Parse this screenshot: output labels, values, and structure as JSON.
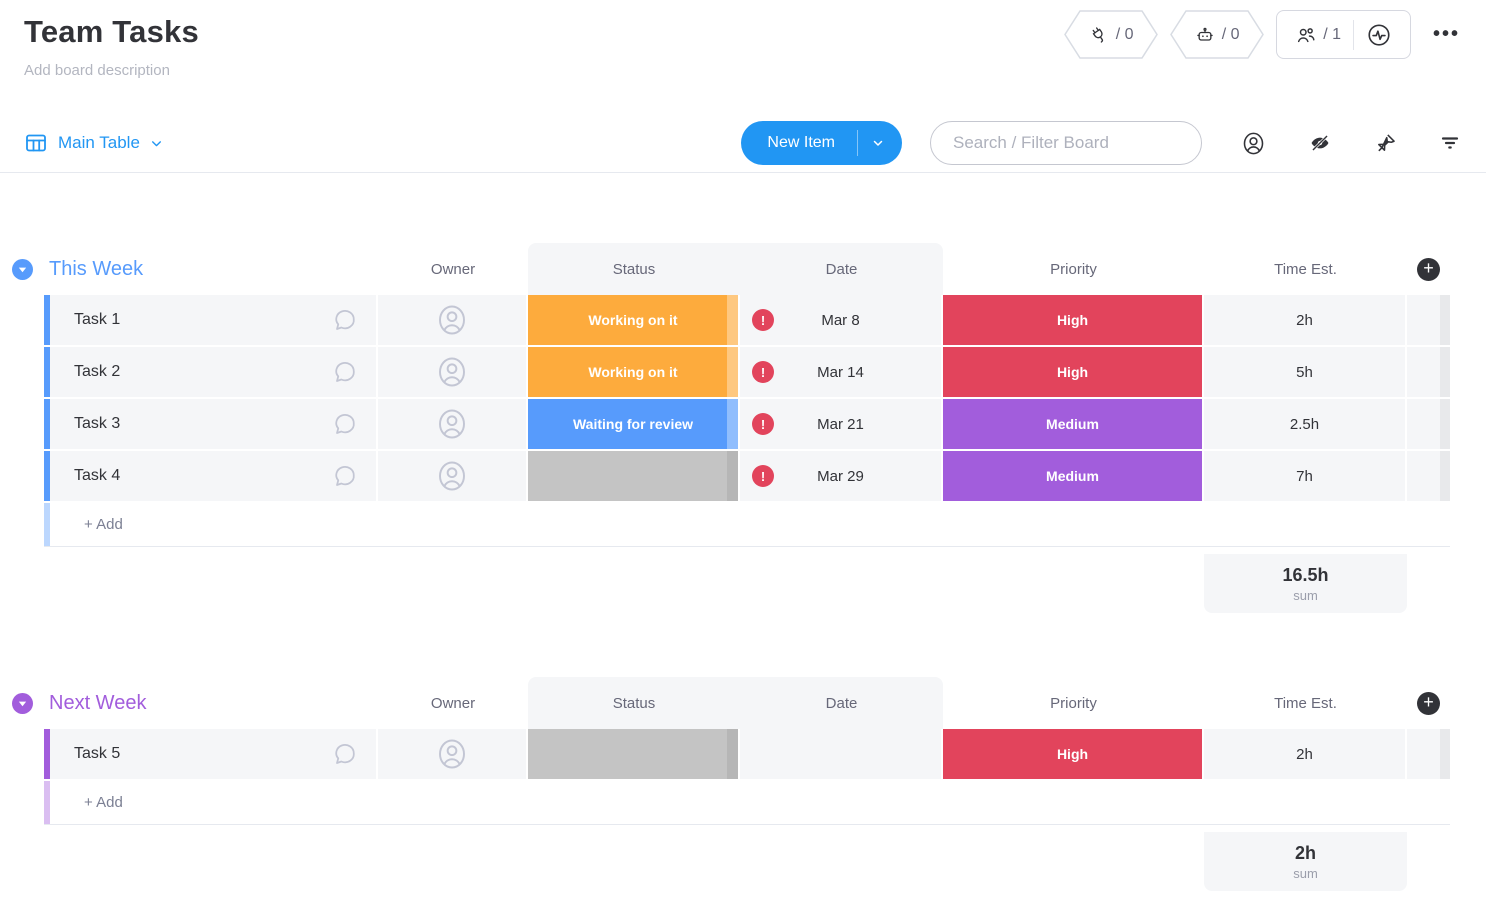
{
  "colors": {
    "accent": "#2196f3",
    "text_dark": "#323338",
    "text_gray": "#676879"
  },
  "header": {
    "title": "Team Tasks",
    "description_placeholder": "Add board description",
    "badges": {
      "integrations_count": "/ 0",
      "automations_count": "/ 0",
      "members_count": "/ 1"
    }
  },
  "icons": {
    "menu_glyph": "•••",
    "add_column_glyph": "+",
    "date_alert_glyph": "!"
  },
  "toolbar": {
    "view_tab": "Main Table",
    "new_item_label": "New Item",
    "search_placeholder": "Search / Filter Board"
  },
  "columns": [
    "Owner",
    "Status",
    "Date",
    "Priority",
    "Time Est."
  ],
  "groups": [
    {
      "name": "This Week",
      "color": "#579bfc",
      "add_label": "+ Add",
      "sum": {
        "value": "16.5h",
        "label": "sum"
      },
      "tasks": [
        {
          "name": "Task 1",
          "status": "Working on it",
          "status_color": "#fdab3d",
          "date": "Mar 8",
          "date_alert": true,
          "priority": "High",
          "priority_color": "#e2445c",
          "time": "2h"
        },
        {
          "name": "Task 2",
          "status": "Working on it",
          "status_color": "#fdab3d",
          "date": "Mar 14",
          "date_alert": true,
          "priority": "High",
          "priority_color": "#e2445c",
          "time": "5h"
        },
        {
          "name": "Task 3",
          "status": "Waiting for review",
          "status_color": "#579bfc",
          "date": "Mar 21",
          "date_alert": true,
          "priority": "Medium",
          "priority_color": "#a25ddc",
          "time": "2.5h"
        },
        {
          "name": "Task 4",
          "status": "",
          "status_color": "#c4c4c4",
          "date": "Mar 29",
          "date_alert": true,
          "priority": "Medium",
          "priority_color": "#a25ddc",
          "time": "7h"
        }
      ]
    },
    {
      "name": "Next Week",
      "color": "#a25ddc",
      "add_label": "+ Add",
      "sum": {
        "value": "2h",
        "label": "sum"
      },
      "tasks": [
        {
          "name": "Task 5",
          "status": "",
          "status_color": "#c4c4c4",
          "date": "",
          "date_alert": false,
          "priority": "High",
          "priority_color": "#e2445c",
          "time": "2h"
        }
      ]
    }
  ]
}
